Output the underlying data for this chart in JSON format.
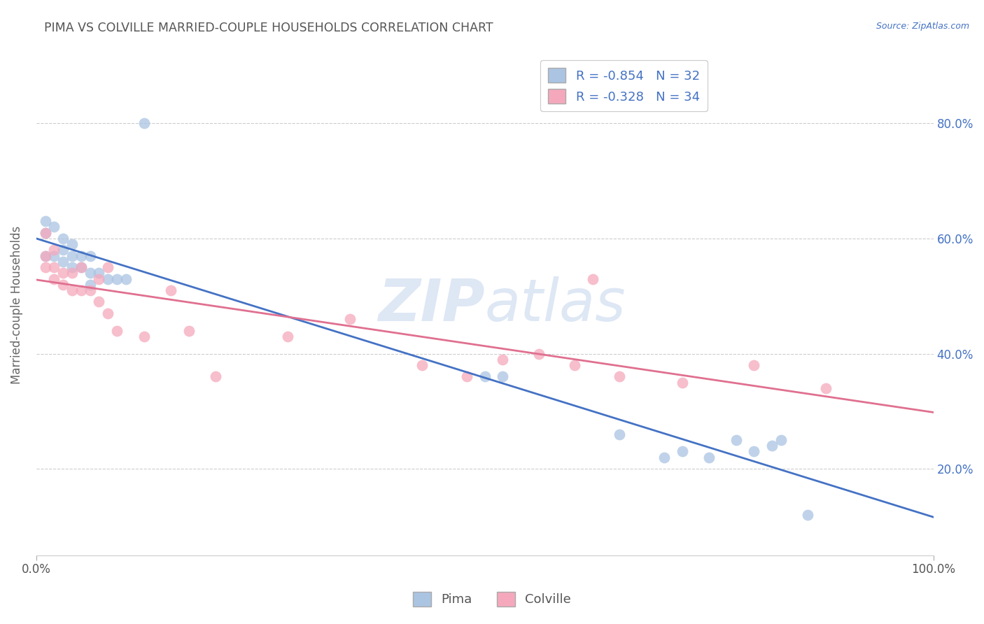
{
  "title": "PIMA VS COLVILLE MARRIED-COUPLE HOUSEHOLDS CORRELATION CHART",
  "source": "Source: ZipAtlas.com",
  "ylabel": "Married-couple Households",
  "xlabel": "",
  "pima_R": -0.854,
  "pima_N": 32,
  "colville_R": -0.328,
  "colville_N": 34,
  "pima_color": "#aac4e2",
  "colville_color": "#f5a8bc",
  "pima_line_color": "#4472c4",
  "colville_line_color": "#e07090",
  "title_color": "#555555",
  "axis_label_color": "#4472c4",
  "source_color": "#4472c4",
  "watermark_color": "#c8d8ee",
  "grid_color": "#cccccc",
  "pima_x": [
    0.01,
    0.01,
    0.01,
    0.02,
    0.02,
    0.03,
    0.03,
    0.03,
    0.04,
    0.04,
    0.04,
    0.05,
    0.05,
    0.06,
    0.06,
    0.06,
    0.07,
    0.08,
    0.09,
    0.1,
    0.12,
    0.5,
    0.52,
    0.65,
    0.7,
    0.72,
    0.75,
    0.78,
    0.8,
    0.82,
    0.83,
    0.86
  ],
  "pima_y": [
    0.57,
    0.61,
    0.63,
    0.57,
    0.62,
    0.56,
    0.58,
    0.6,
    0.55,
    0.57,
    0.59,
    0.55,
    0.57,
    0.52,
    0.54,
    0.57,
    0.54,
    0.53,
    0.53,
    0.53,
    0.8,
    0.36,
    0.36,
    0.26,
    0.22,
    0.23,
    0.22,
    0.25,
    0.23,
    0.24,
    0.25,
    0.12
  ],
  "colville_x": [
    0.01,
    0.01,
    0.01,
    0.02,
    0.02,
    0.02,
    0.03,
    0.03,
    0.04,
    0.04,
    0.05,
    0.05,
    0.06,
    0.07,
    0.07,
    0.08,
    0.08,
    0.09,
    0.12,
    0.15,
    0.17,
    0.2,
    0.28,
    0.35,
    0.43,
    0.48,
    0.52,
    0.56,
    0.6,
    0.62,
    0.65,
    0.72,
    0.8,
    0.88
  ],
  "colville_y": [
    0.55,
    0.57,
    0.61,
    0.53,
    0.55,
    0.58,
    0.52,
    0.54,
    0.51,
    0.54,
    0.51,
    0.55,
    0.51,
    0.49,
    0.53,
    0.47,
    0.55,
    0.44,
    0.43,
    0.51,
    0.44,
    0.36,
    0.43,
    0.46,
    0.38,
    0.36,
    0.39,
    0.4,
    0.38,
    0.53,
    0.36,
    0.35,
    0.38,
    0.34
  ],
  "ytick_vals": [
    0.2,
    0.4,
    0.6,
    0.8
  ],
  "ytick_labels": [
    "20.0%",
    "40.0%",
    "60.0%",
    "80.0%"
  ],
  "xtick_vals": [
    0.0,
    1.0
  ],
  "xtick_labels": [
    "0.0%",
    "100.0%"
  ],
  "xlim": [
    0.0,
    1.0
  ],
  "ylim": [
    0.05,
    0.92
  ]
}
